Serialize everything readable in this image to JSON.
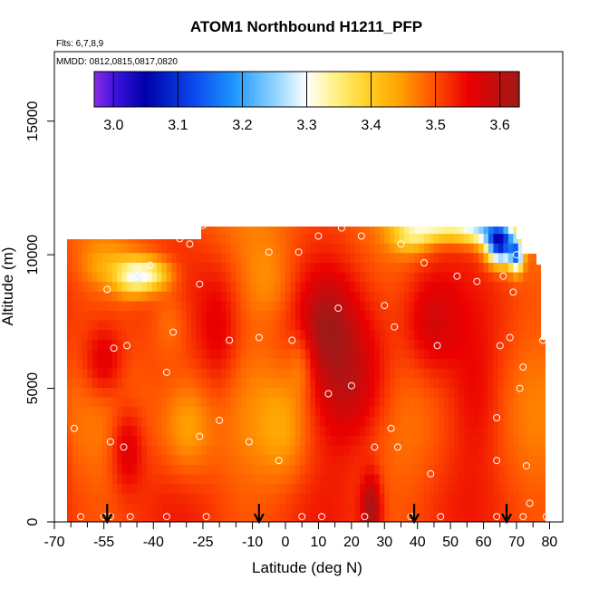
{
  "chart_data": {
    "type": "heatmap",
    "title": "ATOM1 Northbound H1211_PFP",
    "subtitle_flights": "Flts: 6,7,8,9",
    "subtitle_dates": "MMDD: 0812,0815,0817,0820",
    "xlabel": "Latitude (deg N)",
    "ylabel": "Altitude (m)",
    "xlim": [
      -70,
      84
    ],
    "ylim": [
      0,
      17600
    ],
    "x_ticks": [
      -70,
      -55,
      -40,
      -25,
      -10,
      0,
      10,
      20,
      30,
      40,
      50,
      60,
      70,
      80
    ],
    "x_minor_ticks": [
      -65,
      -60,
      -50,
      -45,
      -35,
      -30,
      -20,
      -15,
      -5,
      5,
      15,
      25,
      35,
      45,
      55,
      65,
      75
    ],
    "y_ticks": [
      0,
      5000,
      10000,
      15000
    ],
    "colorbar": {
      "min": 2.97,
      "max": 3.63,
      "ticks": [
        3.0,
        3.1,
        3.2,
        3.3,
        3.4,
        3.5,
        3.6
      ],
      "tick_labels": [
        "3.0",
        "3.1",
        "3.2",
        "3.3",
        "3.4",
        "3.5",
        "3.6"
      ]
    },
    "profile_markers_lat": [
      -54,
      -8,
      39,
      67
    ],
    "sample_points": [
      [
        -68,
        11000
      ],
      [
        -68,
        7000
      ],
      [
        -68,
        3200
      ],
      [
        -68,
        200
      ],
      [
        -64,
        3500
      ],
      [
        -62,
        200
      ],
      [
        -55,
        200
      ],
      [
        -53,
        3000
      ],
      [
        -53,
        200
      ],
      [
        -54,
        8700
      ],
      [
        -52,
        6500
      ],
      [
        -49,
        2800
      ],
      [
        -48,
        6600
      ],
      [
        -45,
        9200
      ],
      [
        -47,
        200
      ],
      [
        -43,
        9200
      ],
      [
        -41,
        9600
      ],
      [
        -36,
        5600
      ],
      [
        -36,
        200
      ],
      [
        -34,
        7100
      ],
      [
        -32,
        10600
      ],
      [
        -29,
        10400
      ],
      [
        -26,
        3200
      ],
      [
        -26,
        8900
      ],
      [
        -25,
        11100
      ],
      [
        -24,
        200
      ],
      [
        -20,
        3800
      ],
      [
        -18,
        11200
      ],
      [
        -17,
        6800
      ],
      [
        -13,
        11300
      ],
      [
        -11,
        3000
      ],
      [
        -8,
        6900
      ],
      [
        -5,
        10100
      ],
      [
        -2,
        2300
      ],
      [
        2,
        6800
      ],
      [
        4,
        10100
      ],
      [
        5,
        200
      ],
      [
        10,
        10700
      ],
      [
        11,
        200
      ],
      [
        13,
        4800
      ],
      [
        16,
        8000
      ],
      [
        17,
        11000
      ],
      [
        20,
        5100
      ],
      [
        23,
        10700
      ],
      [
        24,
        200
      ],
      [
        27,
        2800
      ],
      [
        30,
        8100
      ],
      [
        32,
        3500
      ],
      [
        33,
        7300
      ],
      [
        34,
        2800
      ],
      [
        35,
        10400
      ],
      [
        38,
        200
      ],
      [
        42,
        9700
      ],
      [
        44,
        1800
      ],
      [
        46,
        6600
      ],
      [
        47,
        200
      ],
      [
        52,
        9200
      ],
      [
        58,
        9000
      ],
      [
        64,
        3900
      ],
      [
        64,
        2300
      ],
      [
        64,
        200
      ],
      [
        65,
        6600
      ],
      [
        66,
        9200
      ],
      [
        68,
        6900
      ],
      [
        69,
        11200
      ],
      [
        69,
        8600
      ],
      [
        70,
        10000
      ],
      [
        71,
        5000
      ],
      [
        72,
        5800
      ],
      [
        72,
        200
      ],
      [
        73,
        2100
      ],
      [
        74,
        700
      ],
      [
        78,
        6800
      ],
      [
        79,
        200
      ]
    ]
  }
}
